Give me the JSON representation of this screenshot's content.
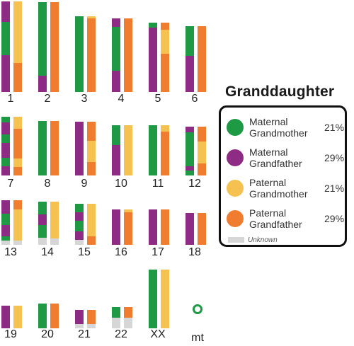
{
  "colors": {
    "maternal_grandmother": "#1e9a44",
    "maternal_grandfather": "#8e2c85",
    "paternal_grandmother": "#f5c150",
    "paternal_grandfather": "#f07c30",
    "unknown": "#d6d6d6"
  },
  "legend": {
    "title": "Granddaughter",
    "items": [
      {
        "label_line1": "Maternal",
        "label_line2": "Grandmother",
        "percent": "21%",
        "color_key": "maternal_grandmother"
      },
      {
        "label_line1": "Maternal",
        "label_line2": "Grandfather",
        "percent": "29%",
        "color_key": "maternal_grandfather"
      },
      {
        "label_line1": "Paternal",
        "label_line2": "Grandmother",
        "percent": "21%",
        "color_key": "paternal_grandmother"
      },
      {
        "label_line1": "Paternal",
        "label_line2": "Grandfather",
        "percent": "29%",
        "color_key": "paternal_grandfather"
      }
    ],
    "unknown_label": "Unknown"
  },
  "chromosomes": [
    {
      "label": "1",
      "maternal": [
        [
          "p",
          0.23
        ],
        [
          "g",
          0.37
        ],
        [
          "p",
          0.4
        ]
      ],
      "paternal": [
        [
          "y",
          0.68
        ],
        [
          "o",
          0.32
        ]
      ]
    },
    {
      "label": "2",
      "maternal": [
        [
          "g",
          0.82
        ],
        [
          "p",
          0.18
        ]
      ],
      "paternal": [
        [
          "o",
          1.0
        ]
      ]
    },
    {
      "label": "3",
      "maternal": [
        [
          "g",
          1.0
        ]
      ],
      "paternal": [
        [
          "y",
          0.03
        ],
        [
          "o",
          0.97
        ]
      ]
    },
    {
      "label": "4",
      "maternal": [
        [
          "p",
          0.12
        ],
        [
          "g",
          0.6
        ],
        [
          "p",
          0.28
        ]
      ],
      "paternal": [
        [
          "o",
          1.0
        ]
      ]
    },
    {
      "label": "5",
      "maternal": [
        [
          "g",
          0.07
        ],
        [
          "p",
          0.93
        ]
      ],
      "paternal": [
        [
          "o",
          0.1
        ],
        [
          "y",
          0.35
        ],
        [
          "o",
          0.55
        ]
      ]
    },
    {
      "label": "6",
      "maternal": [
        [
          "g",
          0.45
        ],
        [
          "p",
          0.55
        ]
      ],
      "paternal": [
        [
          "o",
          1.0
        ]
      ]
    },
    {
      "label": "7",
      "maternal": [
        [
          "g",
          0.1
        ],
        [
          "p",
          0.2
        ],
        [
          "g",
          0.15
        ],
        [
          "p",
          0.25
        ],
        [
          "g",
          0.15
        ],
        [
          "p",
          0.15
        ]
      ],
      "paternal": [
        [
          "y",
          0.2
        ],
        [
          "o",
          0.5
        ],
        [
          "y",
          0.15
        ],
        [
          "o",
          0.15
        ]
      ]
    },
    {
      "label": "8",
      "maternal": [
        [
          "g",
          1.0
        ]
      ],
      "paternal": [
        [
          "o",
          1.0
        ]
      ]
    },
    {
      "label": "9",
      "maternal": [
        [
          "p",
          1.0
        ]
      ],
      "paternal": [
        [
          "o",
          0.35
        ],
        [
          "y",
          0.4
        ],
        [
          "o",
          0.25
        ]
      ]
    },
    {
      "label": "10",
      "maternal": [
        [
          "g",
          0.4
        ],
        [
          "p",
          0.6
        ]
      ],
      "paternal": [
        [
          "y",
          1.0
        ]
      ]
    },
    {
      "label": "11",
      "maternal": [
        [
          "g",
          1.0
        ]
      ],
      "paternal": [
        [
          "y",
          0.12
        ],
        [
          "o",
          0.88
        ]
      ]
    },
    {
      "label": "12",
      "maternal": [
        [
          "p",
          0.12
        ],
        [
          "g",
          0.7
        ],
        [
          "p",
          0.08
        ],
        [
          "g",
          0.1
        ]
      ],
      "paternal": [
        [
          "o",
          0.3
        ],
        [
          "y",
          0.45
        ],
        [
          "o",
          0.25
        ]
      ]
    },
    {
      "label": "13",
      "maternal": [
        [
          "p",
          0.3
        ],
        [
          "g",
          0.25
        ],
        [
          "p",
          0.25
        ],
        [
          "g",
          0.1
        ],
        [
          "u",
          0.1
        ]
      ],
      "paternal": [
        [
          "o",
          0.2
        ],
        [
          "y",
          0.7
        ],
        [
          "u",
          0.1
        ]
      ]
    },
    {
      "label": "14",
      "maternal": [
        [
          "g",
          0.3
        ],
        [
          "p",
          0.25
        ],
        [
          "g",
          0.3
        ],
        [
          "u",
          0.15
        ]
      ],
      "paternal": [
        [
          "y",
          0.85
        ],
        [
          "u",
          0.15
        ]
      ]
    },
    {
      "label": "15",
      "maternal": [
        [
          "g",
          0.2
        ],
        [
          "p",
          0.2
        ],
        [
          "g",
          0.25
        ],
        [
          "p",
          0.2
        ],
        [
          "u",
          0.15
        ]
      ],
      "paternal": [
        [
          "y",
          0.8
        ],
        [
          "o",
          0.2
        ]
      ]
    },
    {
      "label": "16",
      "maternal": [
        [
          "p",
          1.0
        ]
      ],
      "paternal": [
        [
          "y",
          0.07
        ],
        [
          "o",
          0.93
        ]
      ]
    },
    {
      "label": "17",
      "maternal": [
        [
          "p",
          1.0
        ]
      ],
      "paternal": [
        [
          "o",
          1.0
        ]
      ]
    },
    {
      "label": "18",
      "maternal": [
        [
          "p",
          1.0
        ]
      ],
      "paternal": [
        [
          "o",
          1.0
        ]
      ]
    },
    {
      "label": "19",
      "maternal": [
        [
          "p",
          1.0
        ]
      ],
      "paternal": [
        [
          "y",
          1.0
        ]
      ]
    },
    {
      "label": "20",
      "maternal": [
        [
          "g",
          1.0
        ]
      ],
      "paternal": [
        [
          "o",
          1.0
        ]
      ]
    },
    {
      "label": "21",
      "maternal": [
        [
          "p",
          0.75
        ],
        [
          "u",
          0.25
        ]
      ],
      "paternal": [
        [
          "o",
          0.75
        ],
        [
          "u",
          0.25
        ]
      ]
    },
    {
      "label": "22",
      "maternal": [
        [
          "g",
          0.5
        ],
        [
          "u",
          0.5
        ]
      ],
      "paternal": [
        [
          "o",
          0.5
        ],
        [
          "u",
          0.5
        ]
      ]
    },
    {
      "label": "XX",
      "maternal": [
        [
          "g",
          1.0
        ]
      ],
      "paternal": [
        [
          "y",
          1.0
        ]
      ]
    }
  ],
  "mitochondria": {
    "label": "mt",
    "color_key": "maternal_grandmother"
  }
}
